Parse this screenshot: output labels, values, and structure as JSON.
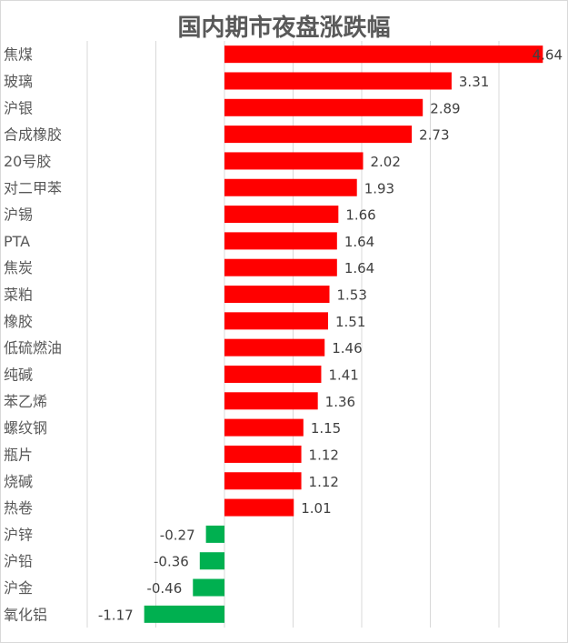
{
  "chart_data": {
    "type": "bar",
    "orientation": "horizontal",
    "title": "国内期市夜盘涨跌幅",
    "categories": [
      "焦煤",
      "玻璃",
      "沪银",
      "合成橡胶",
      "20号胶",
      "对二甲苯",
      "沪锡",
      "PTA",
      "焦炭",
      "菜粕",
      "橡胶",
      "低硫燃油",
      "纯碱",
      "苯乙烯",
      "螺纹钢",
      "瓶片",
      "烧碱",
      "热卷",
      "沪锌",
      "沪铅",
      "沪金",
      "氧化铝"
    ],
    "values": [
      4.64,
      3.31,
      2.89,
      2.73,
      2.02,
      1.93,
      1.66,
      1.64,
      1.64,
      1.53,
      1.51,
      1.46,
      1.41,
      1.36,
      1.15,
      1.12,
      1.12,
      1.01,
      -0.27,
      -0.36,
      -0.46,
      -1.17
    ],
    "value_labels": [
      "4.64",
      "3.31",
      "2.89",
      "2.73",
      "2.02",
      "1.93",
      "1.66",
      "1.64",
      "1.64",
      "1.53",
      "1.51",
      "1.46",
      "1.41",
      "1.36",
      "1.15",
      "1.12",
      "1.12",
      "1.01",
      "-0.27",
      "-0.36",
      "-0.46",
      "-1.17"
    ],
    "xlim": [
      -2,
      5
    ],
    "grid": true,
    "legend": "none",
    "colors": {
      "positive": "#ff0000",
      "negative": "#00b050",
      "grid": "#d9d9d9"
    }
  }
}
